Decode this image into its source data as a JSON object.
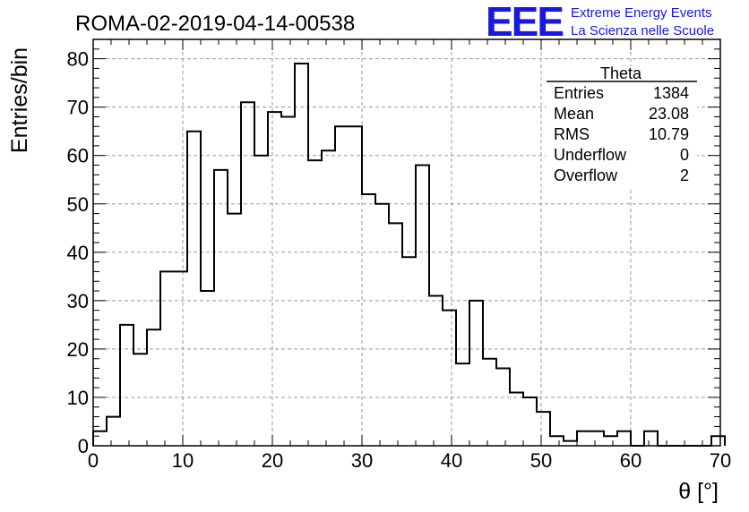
{
  "chart_data": {
    "type": "bar",
    "title": "ROMA-02-2019-04-14-00538",
    "xlabel": "θ [°]",
    "ylabel": "Entries/bin",
    "xlim": [
      0,
      70
    ],
    "ylim": [
      0,
      84
    ],
    "grid": true,
    "bin_width": 1.5,
    "bin_edges_start": 0,
    "values": [
      3,
      6,
      25,
      19,
      24,
      36,
      36,
      65,
      32,
      57,
      48,
      71,
      60,
      69,
      68,
      79,
      59,
      61,
      66,
      66,
      52,
      50,
      46,
      39,
      58,
      31,
      28,
      17,
      30,
      18,
      16,
      11,
      10,
      7,
      2,
      1,
      3,
      3,
      2,
      3,
      0,
      3,
      0,
      0,
      0,
      0,
      2
    ],
    "x_ticks": [
      "0",
      "10",
      "20",
      "30",
      "40",
      "50",
      "60",
      "70"
    ],
    "y_ticks": [
      "0",
      "10",
      "20",
      "30",
      "40",
      "50",
      "60",
      "70",
      "80"
    ],
    "x_tick_values": [
      0,
      10,
      20,
      30,
      40,
      50,
      60,
      70
    ],
    "y_tick_values": [
      0,
      10,
      20,
      30,
      40,
      50,
      60,
      70,
      80
    ]
  },
  "stats_box": {
    "name": "Theta",
    "rows": [
      {
        "label": "Entries",
        "value": "1384"
      },
      {
        "label": "Mean",
        "value": "23.08"
      },
      {
        "label": "RMS",
        "value": "10.79"
      },
      {
        "label": "Underflow",
        "value": "0"
      },
      {
        "label": "Overflow",
        "value": "2"
      }
    ]
  },
  "logo": {
    "mark": "EEE",
    "line1": "Extreme Energy Events",
    "line2": "La Scienza nelle Scuole",
    "color": "#1818e0"
  }
}
